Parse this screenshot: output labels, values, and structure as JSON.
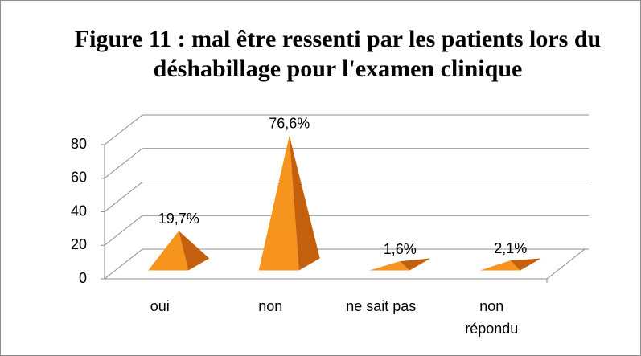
{
  "chart_data": {
    "type": "pyramid3d",
    "title": "Figure 11 : mal être ressenti par les patients lors du déshabillage pour l'examen clinique",
    "categories": [
      "oui",
      "non",
      "ne sait pas",
      "non répondu"
    ],
    "values": [
      19.7,
      76.6,
      1.6,
      2.1
    ],
    "value_labels": [
      "19,7%",
      "76,6%",
      "1,6%",
      "2,1%"
    ],
    "color": "#f7941d",
    "ylim": [
      0,
      80
    ],
    "yticks": [
      0,
      20,
      40,
      60,
      80
    ],
    "grid": true
  }
}
